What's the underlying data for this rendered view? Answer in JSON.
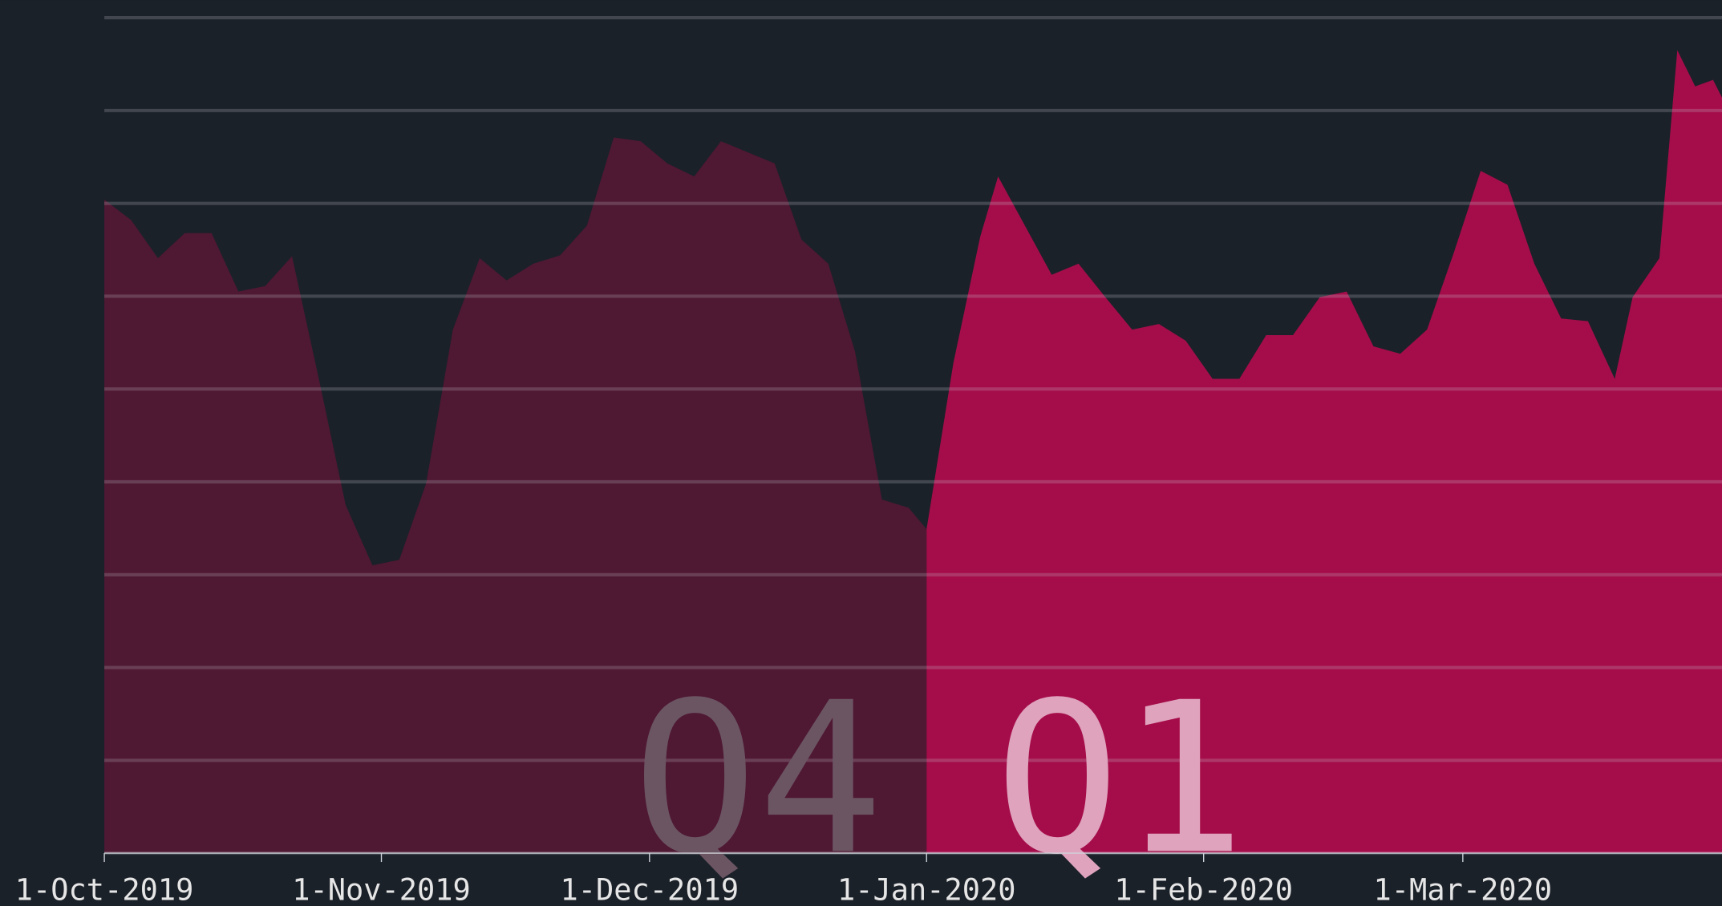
{
  "chart_data": {
    "type": "area",
    "xlim": [
      "2019-10-01",
      "2020-03-30"
    ],
    "xticks": [
      {
        "value": "2019-10-01",
        "label": "1-Oct-2019"
      },
      {
        "value": "2019-11-01",
        "label": "1-Nov-2019"
      },
      {
        "value": "2019-12-01",
        "label": "1-Dec-2019"
      },
      {
        "value": "2020-01-01",
        "label": "1-Jan-2020"
      },
      {
        "value": "2020-02-01",
        "label": "1-Feb-2020"
      },
      {
        "value": "2020-03-01",
        "label": "1-Mar-2020"
      }
    ],
    "ylim": [
      0,
      9
    ],
    "yticks": [
      0,
      1,
      2,
      3,
      4,
      5,
      6,
      7,
      8,
      9
    ],
    "grid": true,
    "series": [
      {
        "name": "Q4",
        "color": "#4f1833",
        "x": [
          "2019-10-01",
          "2019-10-04",
          "2019-10-07",
          "2019-10-10",
          "2019-10-13",
          "2019-10-16",
          "2019-10-19",
          "2019-10-22",
          "2019-10-25",
          "2019-10-28",
          "2019-10-31",
          "2019-11-03",
          "2019-11-06",
          "2019-11-09",
          "2019-11-12",
          "2019-11-15",
          "2019-11-18",
          "2019-11-21",
          "2019-11-24",
          "2019-11-27",
          "2019-11-30",
          "2019-12-03",
          "2019-12-06",
          "2019-12-09",
          "2019-12-12",
          "2019-12-15",
          "2019-12-18",
          "2019-12-21",
          "2019-12-24",
          "2019-12-27",
          "2019-12-30",
          "2020-01-01"
        ],
        "values": [
          7.04,
          6.82,
          6.41,
          6.68,
          6.68,
          6.05,
          6.11,
          6.43,
          5.11,
          3.75,
          3.1,
          3.16,
          3.98,
          5.64,
          6.41,
          6.17,
          6.35,
          6.44,
          6.76,
          7.71,
          7.67,
          7.43,
          7.29,
          7.67,
          7.55,
          7.43,
          6.61,
          6.35,
          5.4,
          3.81,
          3.72,
          3.49
        ]
      },
      {
        "name": "Q1",
        "color": "#a50d4a",
        "x": [
          "2020-01-01",
          "2020-01-04",
          "2020-01-07",
          "2020-01-09",
          "2020-01-12",
          "2020-01-15",
          "2020-01-18",
          "2020-01-21",
          "2020-01-24",
          "2020-01-27",
          "2020-01-30",
          "2020-02-02",
          "2020-02-05",
          "2020-02-08",
          "2020-02-11",
          "2020-02-14",
          "2020-02-17",
          "2020-02-20",
          "2020-02-23",
          "2020-02-26",
          "2020-02-29",
          "2020-03-03",
          "2020-03-06",
          "2020-03-09",
          "2020-03-12",
          "2020-03-15",
          "2020-03-18",
          "2020-03-20",
          "2020-03-23",
          "2020-03-25",
          "2020-03-27",
          "2020-03-29",
          "2020-03-30"
        ],
        "values": [
          3.49,
          5.28,
          6.64,
          7.29,
          6.76,
          6.23,
          6.35,
          5.99,
          5.64,
          5.7,
          5.52,
          5.11,
          5.11,
          5.58,
          5.58,
          5.99,
          6.05,
          5.46,
          5.38,
          5.64,
          6.47,
          7.35,
          7.2,
          6.35,
          5.76,
          5.73,
          5.11,
          5.99,
          6.41,
          8.65,
          8.26,
          8.33,
          8.14
        ]
      }
    ]
  }
}
